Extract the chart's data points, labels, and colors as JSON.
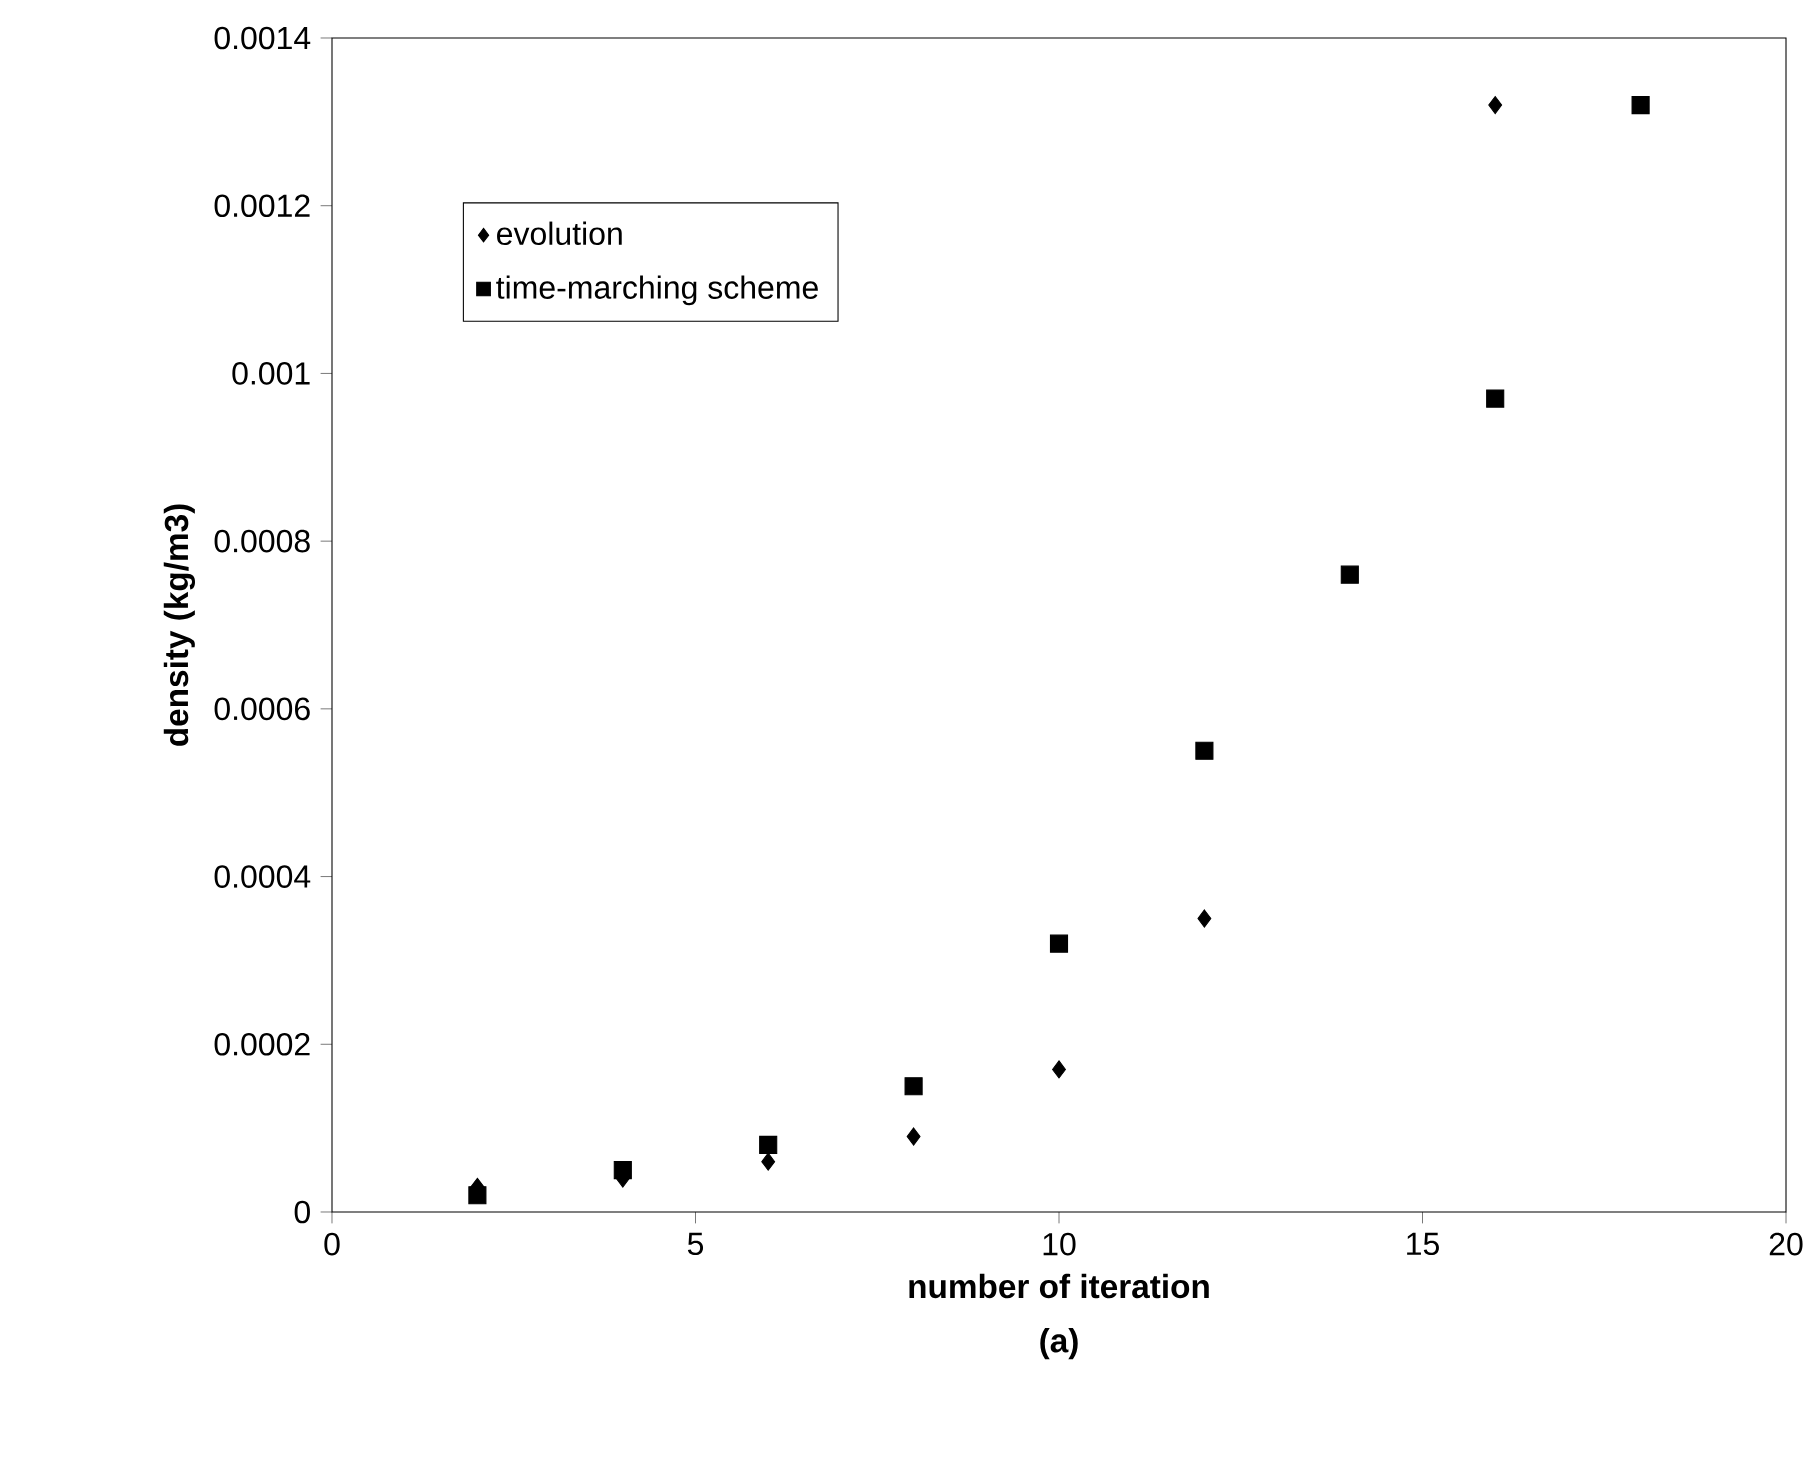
{
  "chart_data": {
    "type": "scatter",
    "xlabel": "number of iteration",
    "ylabel": "density (kg/m3)",
    "annotations": [
      "(a)"
    ],
    "xlim": [
      0,
      20
    ],
    "xticks": [
      0,
      5,
      10,
      15,
      20
    ],
    "ylim": [
      0,
      0.0014
    ],
    "yticks": [
      0,
      0.0002,
      0.0004,
      0.0006,
      0.0008,
      0.001,
      0.0012,
      0.0014
    ],
    "grid": false,
    "legend": "top left",
    "series": [
      {
        "name": "evolution",
        "color": "#000000",
        "marker": "diamond",
        "x": [
          2,
          4,
          6,
          8,
          10,
          12,
          16
        ],
        "values": [
          3e-05,
          4e-05,
          6e-05,
          9e-05,
          0.00017,
          0.00035,
          0.00132
        ]
      },
      {
        "name": "time-marching scheme",
        "color": "#000000",
        "marker": "square",
        "x": [
          2,
          4,
          6,
          8,
          10,
          12,
          14,
          16,
          18
        ],
        "values": [
          2e-05,
          5e-05,
          8e-05,
          0.00015,
          0.00032,
          0.00055,
          0.00076,
          0.00097,
          0.00132
        ]
      }
    ]
  }
}
